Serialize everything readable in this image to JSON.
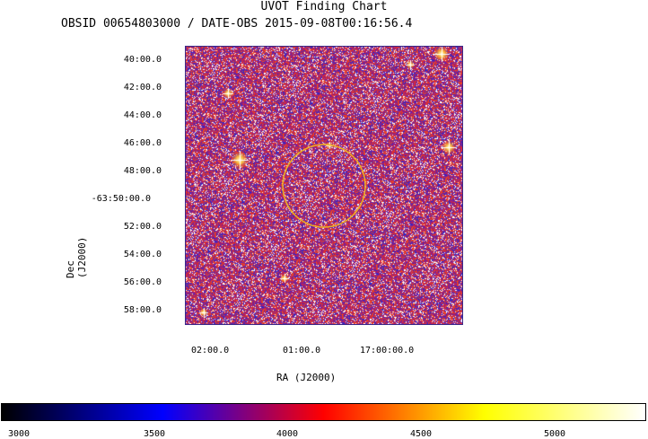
{
  "header": {
    "title": "UVOT Finding Chart",
    "subtitle": "OBSID 00654803000 / DATE-OBS 2015-09-08T00:16:56.4"
  },
  "chart_data": {
    "type": "heatmap",
    "title": "UVOT Finding Chart",
    "subtitle": "OBSID 00654803000 / DATE-OBS 2015-09-08T00:16:56.4",
    "xlabel": "RA (J2000)",
    "ylabel": "Dec (J2000)",
    "y_ticks": [
      "40:00.0",
      "42:00.0",
      "44:00.0",
      "46:00.0",
      "48:00.0",
      "-63:50:00.0",
      "52:00.0",
      "54:00.0",
      "56:00.0",
      "58:00.0"
    ],
    "x_ticks": [
      "02:00.0",
      "01:00.0",
      "17:00:00.0"
    ],
    "colorbar": {
      "ticks": [
        "3000",
        "3500",
        "4000",
        "4500",
        "5000"
      ],
      "tick_values": [
        3000,
        3500,
        4000,
        4500,
        5000
      ],
      "range": [
        2980,
        5350
      ],
      "colormap": [
        "#000000",
        "#0000ff",
        "#ff0000",
        "#ffff00",
        "#ffffff"
      ]
    },
    "target_circle": {
      "color": "#f0b020"
    },
    "bright_sources": [
      {
        "name": "star-northeast-corner"
      },
      {
        "name": "star-upper-left"
      },
      {
        "name": "star-left"
      },
      {
        "name": "star-right"
      },
      {
        "name": "star-bottom-left"
      }
    ]
  }
}
